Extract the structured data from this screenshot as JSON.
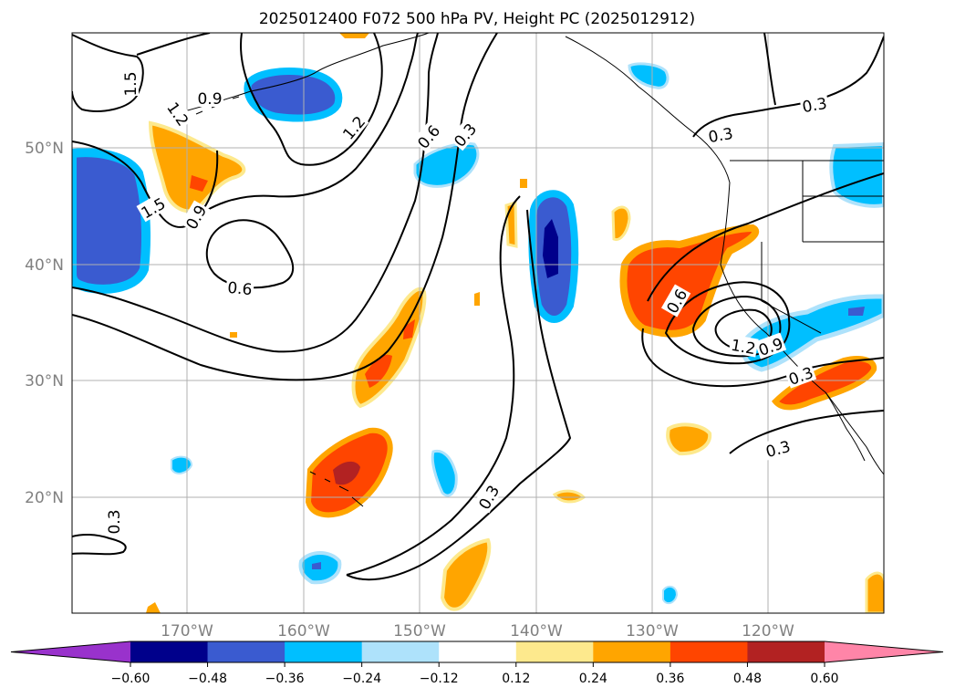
{
  "title": "2025012400 F072 500 hPa PV, Height PC (2025012912)",
  "map": {
    "lon_labels": [
      "170°W",
      "160°W",
      "150°W",
      "140°W",
      "130°W",
      "120°W"
    ],
    "lat_labels": [
      "50°N",
      "40°N",
      "30°N",
      "20°N"
    ],
    "gridlines": true
  },
  "colorbar": {
    "tick_labels": [
      "−0.60",
      "−0.48",
      "−0.36",
      "−0.24",
      "−0.12",
      "0.12",
      "0.24",
      "0.36",
      "0.48",
      "0.60"
    ],
    "colors": [
      "#9932cc",
      "#00008b",
      "#3a5bd0",
      "#00bfff",
      "#aee2fb",
      "#ffffff",
      "#fde98d",
      "#ffa500",
      "#ff4500",
      "#b22222",
      "#ff85a8"
    ],
    "extend": "both"
  },
  "contour_labels": [
    "1.5",
    "0.9",
    "1.2",
    "1.2",
    "0.6",
    "0.3",
    "0.3",
    "0.3",
    "1.5",
    "0.9",
    "0.6",
    "0.6",
    "1.2",
    "0.9",
    "0.3",
    "0.3",
    "0.3",
    "0.3"
  ],
  "chart_data": {
    "type": "heatmap",
    "title": "2025012400 F072 500 hPa PV, Height PC (2025012912)",
    "variable": "500 hPa PV (shaded) and Height PC (contours)",
    "x_axis": [
      "170°W",
      "160°W",
      "150°W",
      "140°W",
      "130°W",
      "120°W"
    ],
    "y_axis": [
      "50°N",
      "40°N",
      "30°N",
      "20°N"
    ],
    "shading_levels": [
      -0.6,
      -0.48,
      -0.36,
      -0.24,
      -0.12,
      0.12,
      0.24,
      0.36,
      0.48,
      0.6
    ],
    "contour_levels_labeled": [
      0.3,
      0.6,
      0.9,
      1.2,
      1.5
    ],
    "legend_placement": "bottom"
  }
}
